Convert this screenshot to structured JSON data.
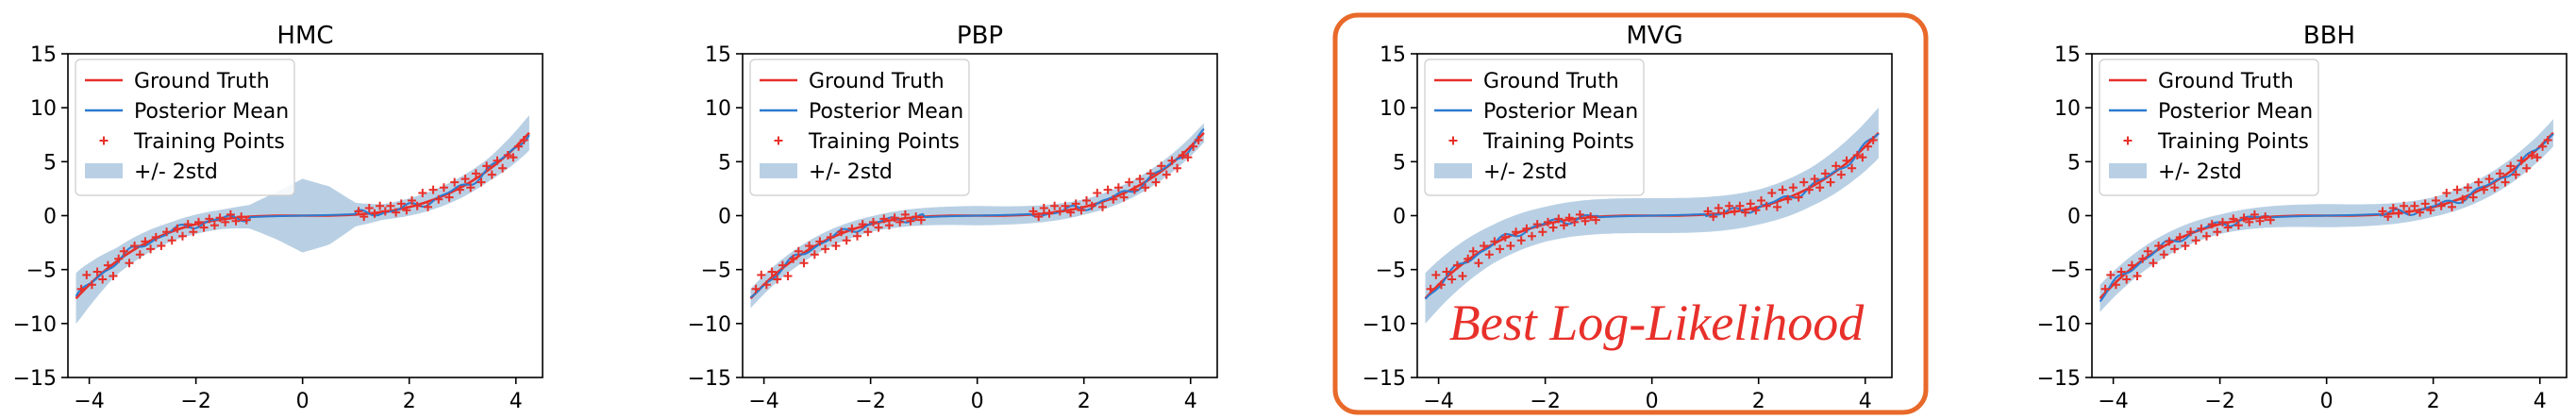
{
  "colors": {
    "ground_truth": "#e8302a",
    "posterior_mean": "#2c7bd0",
    "training_points": "#e8302a",
    "band": "#b9d0e4",
    "highlight": "#e8692a",
    "annotation": "#e8302a"
  },
  "legend": {
    "ground_truth": "Ground Truth",
    "posterior_mean": "Posterior Mean",
    "training_points": "Training Points",
    "band": "+/- 2std"
  },
  "annotation": "Best Log-Likelihood",
  "chart_data": [
    {
      "type": "line",
      "title": "HMC",
      "xlim": [
        -4.4,
        4.5
      ],
      "ylim": [
        -15,
        15
      ],
      "xticks": [
        -4,
        -2,
        0,
        2,
        4
      ],
      "yticks": [
        15,
        10,
        5,
        0,
        -5,
        -10,
        -15
      ],
      "xticklabels": [
        "−4",
        "−2",
        "0",
        "2",
        "4"
      ],
      "yticklabels": [
        "15",
        "10",
        "5",
        "0",
        "−5",
        "−10",
        "−15"
      ],
      "ground_truth": "y = x^3/10",
      "band_halfwidth": [
        [
          -4.2,
          1.3
        ],
        [
          -3.5,
          0.7
        ],
        [
          -2.5,
          0.5
        ],
        [
          -1.5,
          0.5
        ],
        [
          -1.0,
          0.6
        ],
        [
          -0.5,
          1.2
        ],
        [
          0.0,
          1.9
        ],
        [
          0.5,
          1.5
        ],
        [
          1.0,
          0.6
        ],
        [
          1.5,
          0.4
        ],
        [
          2.5,
          0.5
        ],
        [
          3.5,
          0.6
        ],
        [
          4.2,
          0.9
        ]
      ],
      "highlighted": false
    },
    {
      "type": "line",
      "title": "PBP",
      "xlim": [
        -4.4,
        4.5
      ],
      "ylim": [
        -15,
        15
      ],
      "xticks": [
        -4,
        -2,
        0,
        2,
        4
      ],
      "yticks": [
        15,
        10,
        5,
        0,
        -5,
        -10,
        -15
      ],
      "xticklabels": [
        "−4",
        "−2",
        "0",
        "2",
        "4"
      ],
      "yticklabels": [
        "15",
        "10",
        "5",
        "0",
        "−5",
        "−10",
        "−15"
      ],
      "ground_truth": "y = x^3/10",
      "band_halfwidth": [
        [
          -4.2,
          0.5
        ],
        [
          -2.0,
          0.4
        ],
        [
          0.0,
          0.5
        ],
        [
          2.0,
          0.4
        ],
        [
          4.2,
          0.5
        ]
      ],
      "highlighted": false
    },
    {
      "type": "line",
      "title": "MVG",
      "xlim": [
        -4.4,
        4.5
      ],
      "ylim": [
        -15,
        15
      ],
      "xticks": [
        -4,
        -2,
        0,
        2,
        4
      ],
      "yticks": [
        15,
        10,
        5,
        0,
        -5,
        -10,
        -15
      ],
      "xticklabels": [
        "−4",
        "−2",
        "0",
        "2",
        "4"
      ],
      "yticklabels": [
        "15",
        "10",
        "5",
        "0",
        "−5",
        "−10",
        "−15"
      ],
      "ground_truth": "y = x^3/10",
      "band_halfwidth": [
        [
          -4.2,
          1.3
        ],
        [
          -3.0,
          1.0
        ],
        [
          -2.0,
          0.9
        ],
        [
          0.0,
          0.9
        ],
        [
          2.0,
          0.9
        ],
        [
          3.0,
          1.0
        ],
        [
          4.2,
          1.3
        ]
      ],
      "highlighted": true
    },
    {
      "type": "line",
      "title": "BBH",
      "xlim": [
        -4.4,
        4.5
      ],
      "ylim": [
        -15,
        15
      ],
      "xticks": [
        -4,
        -2,
        0,
        2,
        4
      ],
      "yticks": [
        15,
        10,
        5,
        0,
        -5,
        -10,
        -15
      ],
      "xticklabels": [
        "−4",
        "−2",
        "0",
        "2",
        "4"
      ],
      "yticklabels": [
        "15",
        "10",
        "5",
        "0",
        "−5",
        "−10",
        "−15"
      ],
      "ground_truth": "y = x^3/10",
      "band_halfwidth": [
        [
          -4.2,
          0.7
        ],
        [
          -2.0,
          0.5
        ],
        [
          0.0,
          0.6
        ],
        [
          2.0,
          0.5
        ],
        [
          4.2,
          0.7
        ]
      ],
      "highlighted": false
    }
  ],
  "training_points": [
    [
      -4.15,
      -6.8
    ],
    [
      -4.05,
      -5.5
    ],
    [
      -3.95,
      -6.4
    ],
    [
      -3.85,
      -5.2
    ],
    [
      -3.75,
      -5.9
    ],
    [
      -3.65,
      -4.6
    ],
    [
      -3.55,
      -5.6
    ],
    [
      -3.45,
      -4.0
    ],
    [
      -3.35,
      -3.3
    ],
    [
      -3.25,
      -4.4
    ],
    [
      -3.15,
      -2.8
    ],
    [
      -3.05,
      -3.6
    ],
    [
      -2.95,
      -2.4
    ],
    [
      -2.85,
      -3.1
    ],
    [
      -2.75,
      -2.0
    ],
    [
      -2.65,
      -2.8
    ],
    [
      -2.55,
      -1.5
    ],
    [
      -2.45,
      -2.3
    ],
    [
      -2.35,
      -1.2
    ],
    [
      -2.25,
      -1.9
    ],
    [
      -2.15,
      -0.8
    ],
    [
      -2.05,
      -1.5
    ],
    [
      -1.95,
      -0.6
    ],
    [
      -1.85,
      -1.1
    ],
    [
      -1.75,
      -0.3
    ],
    [
      -1.65,
      -0.9
    ],
    [
      -1.55,
      -0.2
    ],
    [
      -1.45,
      -0.6
    ],
    [
      -1.35,
      0.1
    ],
    [
      -1.25,
      -0.5
    ],
    [
      -1.15,
      -0.1
    ],
    [
      -1.05,
      -0.4
    ],
    [
      1.05,
      0.4
    ],
    [
      1.15,
      -0.1
    ],
    [
      1.25,
      0.7
    ],
    [
      1.35,
      0.2
    ],
    [
      1.45,
      0.9
    ],
    [
      1.55,
      0.4
    ],
    [
      1.65,
      0.9
    ],
    [
      1.75,
      0.3
    ],
    [
      1.85,
      1.1
    ],
    [
      1.95,
      0.5
    ],
    [
      2.05,
      1.4
    ],
    [
      2.15,
      0.9
    ],
    [
      2.25,
      2.1
    ],
    [
      2.35,
      0.8
    ],
    [
      2.45,
      2.4
    ],
    [
      2.55,
      1.5
    ],
    [
      2.65,
      2.6
    ],
    [
      2.75,
      1.7
    ],
    [
      2.85,
      3.1
    ],
    [
      2.95,
      2.4
    ],
    [
      3.05,
      3.4
    ],
    [
      3.15,
      2.6
    ],
    [
      3.25,
      3.9
    ],
    [
      3.35,
      3.1
    ],
    [
      3.45,
      4.6
    ],
    [
      3.55,
      3.8
    ],
    [
      3.65,
      5.1
    ],
    [
      3.75,
      4.4
    ],
    [
      3.85,
      5.6
    ],
    [
      3.95,
      5.4
    ],
    [
      4.05,
      6.4
    ],
    [
      4.15,
      7.0
    ]
  ]
}
